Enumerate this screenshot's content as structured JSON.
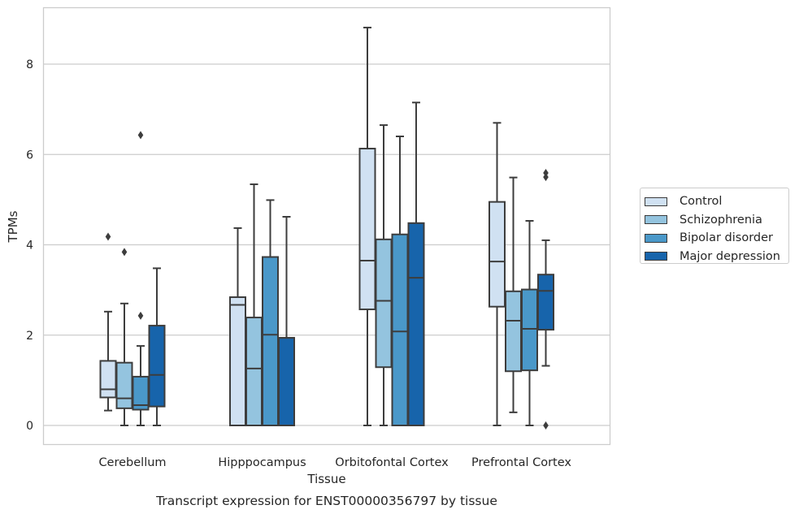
{
  "chart_data": {
    "type": "box",
    "title": "Transcript expression for ENST00000356797 by tissue",
    "xlabel": "Tissue",
    "ylabel": "TPMs",
    "ylim": [
      -0.42,
      9.3
    ],
    "yticks": [
      0,
      2,
      4,
      6,
      8
    ],
    "ytick_labels": [
      "0",
      "2",
      "4",
      "6",
      "8"
    ],
    "grid": "horizontal",
    "legend_position": "right",
    "categories": [
      "Cerebellum",
      "Hipppocampus",
      "Orbitofontal Cortex",
      "Prefrontal Cortex"
    ],
    "series": [
      {
        "name": "Control",
        "color": "#d0e1f2",
        "boxes": [
          {
            "whislo": 0.33,
            "q1": 0.62,
            "med": 0.8,
            "q3": 1.43,
            "whishi": 2.52,
            "fliers": [
              4.18
            ]
          },
          {
            "whislo": 0.0,
            "q1": 0.0,
            "med": 2.67,
            "q3": 2.84,
            "whishi": 4.37,
            "fliers": []
          },
          {
            "whislo": 0.0,
            "q1": 2.57,
            "med": 3.65,
            "q3": 6.13,
            "whishi": 8.81,
            "fliers": []
          },
          {
            "whislo": 0.0,
            "q1": 2.63,
            "med": 3.63,
            "q3": 4.95,
            "whishi": 6.7,
            "fliers": []
          }
        ]
      },
      {
        "name": "Schizophrenia",
        "color": "#94c4df",
        "boxes": [
          {
            "whislo": 0.0,
            "q1": 0.38,
            "med": 0.6,
            "q3": 1.39,
            "whishi": 2.7,
            "fliers": [
              3.84
            ]
          },
          {
            "whislo": 0.0,
            "q1": 0.0,
            "med": 1.26,
            "q3": 2.39,
            "whishi": 5.34,
            "fliers": []
          },
          {
            "whislo": 0.0,
            "q1": 1.29,
            "med": 2.76,
            "q3": 4.12,
            "whishi": 6.65,
            "fliers": []
          },
          {
            "whislo": 0.29,
            "q1": 1.2,
            "med": 2.32,
            "q3": 2.97,
            "whishi": 5.49,
            "fliers": []
          }
        ]
      },
      {
        "name": "Bipolar disorder",
        "color": "#4a98c9",
        "boxes": [
          {
            "whislo": 0.0,
            "q1": 0.35,
            "med": 0.45,
            "q3": 1.08,
            "whishi": 1.76,
            "fliers": [
              2.43,
              6.43
            ]
          },
          {
            "whislo": 0.0,
            "q1": 0.0,
            "med": 2.01,
            "q3": 3.73,
            "whishi": 4.99,
            "fliers": []
          },
          {
            "whislo": 0.0,
            "q1": 0.0,
            "med": 2.08,
            "q3": 4.23,
            "whishi": 6.4,
            "fliers": []
          },
          {
            "whislo": 0.0,
            "q1": 1.22,
            "med": 2.14,
            "q3": 3.01,
            "whishi": 4.53,
            "fliers": []
          }
        ]
      },
      {
        "name": "Major depression",
        "color": "#1764ab",
        "boxes": [
          {
            "whislo": 0.0,
            "q1": 0.42,
            "med": 1.12,
            "q3": 2.21,
            "whishi": 3.48,
            "fliers": []
          },
          {
            "whislo": 0.0,
            "q1": 0.0,
            "med": 1.94,
            "q3": 1.94,
            "whishi": 4.62,
            "fliers": []
          },
          {
            "whislo": 0.0,
            "q1": 0.0,
            "med": 3.27,
            "q3": 4.48,
            "whishi": 7.15,
            "fliers": []
          },
          {
            "whislo": 1.32,
            "q1": 2.12,
            "med": 2.98,
            "q3": 3.34,
            "whishi": 4.1,
            "fliers": [
              0.0,
              5.5,
              5.59
            ]
          }
        ]
      }
    ]
  }
}
